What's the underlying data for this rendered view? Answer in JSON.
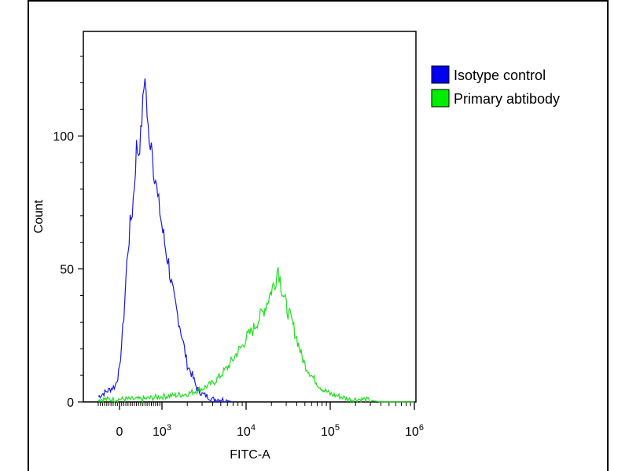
{
  "chart_data": {
    "type": "line",
    "xlabel": "FITC-A",
    "ylabel": "Count",
    "x_scale": "biexponential",
    "x_ticks": [
      {
        "value": 0,
        "base": "0",
        "exp": ""
      },
      {
        "value": 1000,
        "base": "10",
        "exp": "3"
      },
      {
        "value": 10000,
        "base": "10",
        "exp": "4"
      },
      {
        "value": 100000,
        "base": "10",
        "exp": "5"
      },
      {
        "value": 1000000,
        "base": "10",
        "exp": "6"
      }
    ],
    "y_ticks": [
      0,
      50,
      100
    ],
    "ylim": [
      0,
      140
    ],
    "grid": false,
    "legend_position": "right-outside-top",
    "series": [
      {
        "name": "Isotype control",
        "color": "#1a1adc",
        "swatch": "#0000ee",
        "x": [
          -500,
          -300,
          -100,
          0,
          50,
          100,
          150,
          200,
          250,
          300,
          350,
          400,
          450,
          500,
          550,
          600,
          650,
          700,
          750,
          800,
          850,
          900,
          950,
          1000,
          1100,
          1200,
          1300,
          1400,
          1500,
          1650,
          1800,
          2000,
          2300,
          2600,
          3000,
          3500,
          4000,
          5000,
          7000
        ],
        "y": [
          2,
          4,
          6,
          12,
          22,
          32,
          46,
          58,
          66,
          72,
          82,
          96,
          94,
          100,
          112,
          124,
          108,
          96,
          100,
          88,
          84,
          76,
          72,
          66,
          58,
          52,
          44,
          38,
          34,
          28,
          22,
          14,
          10,
          5,
          3,
          2,
          1,
          1,
          0
        ]
      },
      {
        "name": "Primary abtibody",
        "color": "#22dd22",
        "swatch": "#00ee00",
        "x": [
          -500,
          0,
          500,
          1000,
          2000,
          3000,
          4000,
          5000,
          6000,
          7000,
          8000,
          9000,
          10000,
          12000,
          14000,
          16000,
          18000,
          20000,
          22000,
          24000,
          26000,
          28000,
          30000,
          35000,
          40000,
          45000,
          50000,
          60000,
          70000,
          80000,
          100000,
          130000,
          170000,
          250000,
          400000,
          1000000
        ],
        "y": [
          1,
          1,
          1,
          2,
          3,
          5,
          7,
          10,
          13,
          16,
          19,
          21,
          24,
          27,
          31,
          34,
          38,
          42,
          45,
          51,
          44,
          40,
          36,
          30,
          24,
          18,
          14,
          10,
          7,
          5,
          3,
          2,
          1,
          1,
          0,
          0
        ]
      }
    ]
  }
}
